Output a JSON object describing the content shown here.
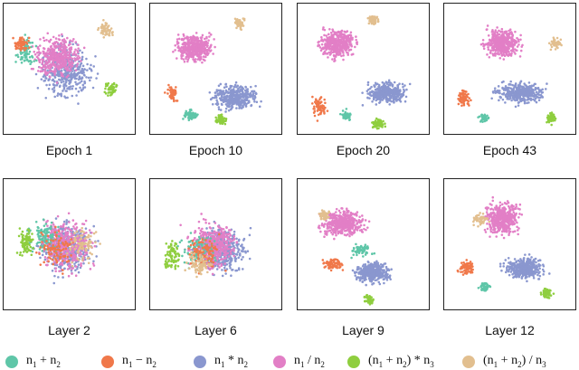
{
  "chart_data": {
    "type": "scatter",
    "legend": [
      {
        "key": "add",
        "html": "n<sub>1</sub> + n<sub>2</sub>",
        "color": "#5fc6a8"
      },
      {
        "key": "sub",
        "html": "n<sub>1</sub> − n<sub>2</sub>",
        "color": "#f0784a"
      },
      {
        "key": "mul",
        "html": "n<sub>1</sub> * n<sub>2</sub>",
        "color": "#8a97cf"
      },
      {
        "key": "div",
        "html": "n<sub>1</sub> / n<sub>2</sub>",
        "color": "#e27fc6"
      },
      {
        "key": "addmul",
        "html": "(n<sub>1</sub> + n<sub>2</sub>) * n<sub>3</sub>",
        "color": "#8fce3f"
      },
      {
        "key": "adddiv",
        "html": "(n<sub>1</sub> + n<sub>2</sub>) / n<sub>3</sub>",
        "color": "#e2bf8f"
      }
    ],
    "panels": [
      {
        "label": "Epoch 1"
      },
      {
        "label": "Epoch 10"
      },
      {
        "label": "Epoch 20"
      },
      {
        "label": "Epoch 43"
      },
      {
        "label": "Layer 2"
      },
      {
        "label": "Layer 6"
      },
      {
        "label": "Layer 9"
      },
      {
        "label": "Layer 12"
      }
    ]
  }
}
